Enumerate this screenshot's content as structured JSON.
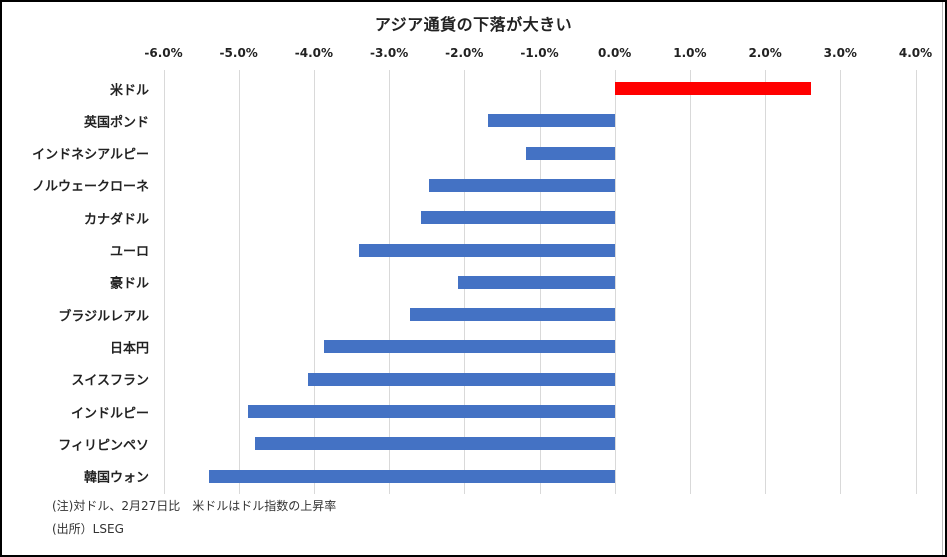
{
  "chart_data": {
    "type": "bar",
    "orientation": "horizontal",
    "title": "アジア通貨の下落が大きい",
    "xlabel": "",
    "ylabel": "",
    "xlim": [
      -6.0,
      4.0
    ],
    "x_ticks": [
      "-6.0%",
      "-5.0%",
      "-4.0%",
      "-3.0%",
      "-2.0%",
      "-1.0%",
      "0.0%",
      "1.0%",
      "2.0%",
      "3.0%",
      "4.0%"
    ],
    "x_axis_position": "top",
    "grid": true,
    "legend": null,
    "categories": [
      "米ドル",
      "英国ポンド",
      "インドネシアルピー",
      "ノルウェークローネ",
      "カナダドル",
      "ユーロ",
      "豪ドル",
      "ブラジルレアル",
      "日本円",
      "スイスフラン",
      "インドルピー",
      "フィリピンペソ",
      "韓国ウォン"
    ],
    "values": [
      2.61,
      -1.68,
      -1.18,
      -2.47,
      -2.58,
      -3.4,
      -2.09,
      -2.72,
      -3.86,
      -4.08,
      -4.88,
      -4.78,
      -5.4
    ],
    "unit": "%",
    "colors": {
      "positive": "#ff0000",
      "negative": "#4472c4"
    }
  },
  "notes": {
    "note": "(注)対ドル、2月27日比　米ドルはドル指数の上昇率",
    "source": "(出所）LSEG"
  }
}
